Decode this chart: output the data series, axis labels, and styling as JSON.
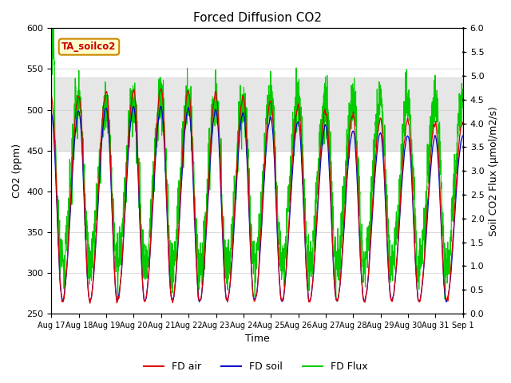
{
  "title": "Forced Diffusion CO2",
  "xlabel": "Time",
  "ylabel_left": "CO2 (ppm)",
  "ylabel_right": "Soil CO2 Flux (μmol/m2/s)",
  "annotation": "TA_soilco2",
  "ylim_left": [
    250,
    600
  ],
  "ylim_right": [
    0.0,
    6.0
  ],
  "yticks_left": [
    250,
    300,
    350,
    400,
    450,
    500,
    550,
    600
  ],
  "yticks_right": [
    0.0,
    0.5,
    1.0,
    1.5,
    2.0,
    2.5,
    3.0,
    3.5,
    4.0,
    4.5,
    5.0,
    5.5,
    6.0
  ],
  "xtick_labels": [
    "Aug 17",
    "Aug 18",
    "Aug 19",
    "Aug 20",
    "Aug 21",
    "Aug 22",
    "Aug 23",
    "Aug 24",
    "Aug 25",
    "Aug 26",
    "Aug 27",
    "Aug 28",
    "Aug 29",
    "Aug 30",
    "Aug 31",
    "Sep 1"
  ],
  "shaded_band": [
    450,
    540
  ],
  "color_air": "#dd0000",
  "color_soil": "#0000cc",
  "color_flux": "#00cc00",
  "legend_entries": [
    "FD air",
    "FD soil",
    "FD Flux"
  ],
  "background_color": "#ffffff",
  "title_fontsize": 11,
  "axis_fontsize": 9,
  "tick_fontsize": 8,
  "n_days": 15,
  "pts_per_day": 144
}
